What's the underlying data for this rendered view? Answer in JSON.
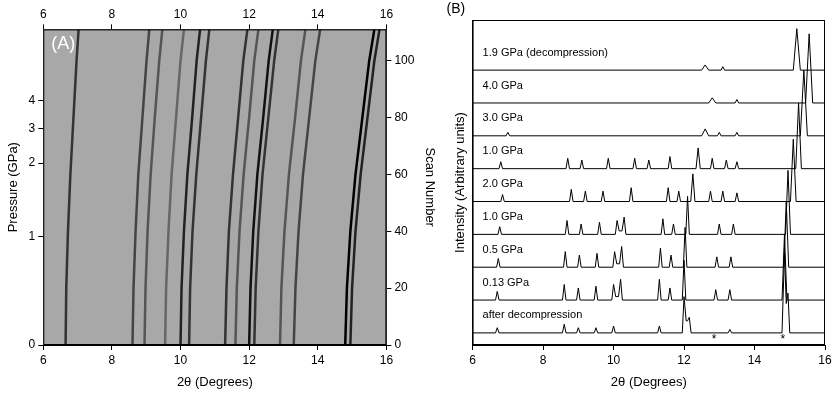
{
  "chart_data": [
    {
      "type": "line",
      "panel_label": "(A)",
      "xlabel": "2θ (Degrees)",
      "ylabel": "Scan Number",
      "y2label": "Pressure (GPa)",
      "xlim": [
        6,
        16
      ],
      "xticks": [
        6,
        8,
        10,
        12,
        14,
        16
      ],
      "ylim": [
        0,
        111
      ],
      "yticks": [
        0,
        20,
        40,
        60,
        80,
        100
      ],
      "y2ticks": [
        0,
        1,
        2,
        3,
        4
      ],
      "y2tick_scans": [
        0,
        38,
        64,
        76,
        86
      ],
      "grid": false,
      "series": [
        {
          "color": "#333333",
          "x": [
            6.65,
            6.67,
            6.72,
            6.79,
            6.88,
            6.97,
            7.03
          ],
          "values": [
            0,
            20,
            40,
            60,
            80,
            100,
            111
          ]
        },
        {
          "color": "#444444",
          "x": [
            8.6,
            8.63,
            8.69,
            8.77,
            8.89,
            9.01,
            9.09
          ],
          "values": [
            0,
            20,
            40,
            60,
            80,
            100,
            111
          ]
        },
        {
          "color": "#555555",
          "x": [
            8.95,
            8.98,
            9.04,
            9.13,
            9.25,
            9.38,
            9.47
          ],
          "values": [
            0,
            20,
            40,
            60,
            80,
            100,
            111
          ]
        },
        {
          "color": "#666666",
          "x": [
            9.55,
            9.58,
            9.65,
            9.74,
            9.87,
            10.0,
            10.1
          ],
          "values": [
            0,
            20,
            40,
            60,
            80,
            100,
            111
          ]
        },
        {
          "color": "#222222",
          "x": [
            10.0,
            10.03,
            10.1,
            10.2,
            10.34,
            10.47,
            10.57
          ],
          "values": [
            0,
            20,
            40,
            60,
            80,
            100,
            111
          ]
        },
        {
          "color": "#333333",
          "x": [
            10.25,
            10.28,
            10.35,
            10.46,
            10.6,
            10.74,
            10.84
          ],
          "values": [
            0,
            20,
            40,
            60,
            80,
            100,
            111
          ]
        },
        {
          "color": "#333333",
          "x": [
            11.3,
            11.34,
            11.41,
            11.53,
            11.68,
            11.83,
            11.95
          ],
          "values": [
            0,
            20,
            40,
            60,
            80,
            100,
            111
          ]
        },
        {
          "color": "#555555",
          "x": [
            11.6,
            11.64,
            11.72,
            11.84,
            12.0,
            12.15,
            12.27
          ],
          "values": [
            0,
            20,
            40,
            60,
            80,
            100,
            111
          ]
        },
        {
          "color": "#111111",
          "x": [
            12.0,
            12.04,
            12.12,
            12.24,
            12.41,
            12.57,
            12.69
          ],
          "values": [
            0,
            20,
            40,
            60,
            80,
            100,
            111
          ]
        },
        {
          "color": "#333333",
          "x": [
            12.15,
            12.19,
            12.27,
            12.39,
            12.56,
            12.73,
            12.85
          ],
          "values": [
            0,
            20,
            40,
            60,
            80,
            100,
            111
          ]
        },
        {
          "color": "#555555",
          "x": [
            12.9,
            12.94,
            13.03,
            13.16,
            13.34,
            13.51,
            13.64
          ],
          "values": [
            0,
            20,
            40,
            60,
            80,
            100,
            111
          ]
        },
        {
          "color": "#444444",
          "x": [
            13.3,
            13.35,
            13.44,
            13.57,
            13.75,
            13.93,
            14.07
          ],
          "values": [
            0,
            20,
            40,
            60,
            80,
            100,
            111
          ]
        },
        {
          "color": "#000000",
          "x": [
            14.8,
            14.85,
            14.95,
            15.1,
            15.3,
            15.5,
            15.65
          ],
          "values": [
            0,
            20,
            40,
            60,
            80,
            100,
            111
          ]
        },
        {
          "color": "#222222",
          "x": [
            14.95,
            15.0,
            15.1,
            15.25,
            15.45,
            15.65,
            15.8
          ],
          "values": [
            0,
            20,
            40,
            60,
            80,
            100,
            111
          ]
        }
      ]
    },
    {
      "type": "line",
      "panel_label": "(B)",
      "xlabel": "2θ (Degrees)",
      "ylabel": "Intensity (Arbitrary units)",
      "xlim": [
        6,
        16
      ],
      "xticks": [
        6,
        8,
        10,
        12,
        14,
        16
      ],
      "ylim": [
        -0.2,
        9.2
      ],
      "tick_labels": "x",
      "grid": false,
      "annotations": [
        {
          "text": "*",
          "x": 12.85,
          "y": -0.05
        },
        {
          "text": "*",
          "x": 14.8,
          "y": -0.05
        }
      ],
      "series": [
        {
          "name": "after decompression",
          "color": "#000000",
          "x": [
            6,
            6.65,
            6.7,
            6.75,
            8.55,
            8.6,
            8.65,
            8.95,
            9.0,
            9.05,
            9.45,
            9.5,
            9.55,
            9.95,
            10.0,
            10.05,
            11.25,
            11.3,
            11.35,
            11.95,
            12.0,
            12.06,
            12.1,
            12.15,
            12.2,
            13.25,
            13.3,
            13.35,
            14.78,
            14.85,
            14.9,
            14.95,
            15.0,
            16
          ],
          "values": [
            0.15,
            0.15,
            0.3,
            0.15,
            0.15,
            0.4,
            0.15,
            0.15,
            0.3,
            0.15,
            0.15,
            0.3,
            0.15,
            0.15,
            0.35,
            0.15,
            0.15,
            0.35,
            0.15,
            0.15,
            1.2,
            0.5,
            0.5,
            0.6,
            0.15,
            0.15,
            0.25,
            0.15,
            0.15,
            2.45,
            1.0,
            1.3,
            0.15,
            0.15
          ]
        },
        {
          "name": "0.13 GPa",
          "color": "#000000",
          "x": [
            6,
            6.65,
            6.7,
            6.75,
            8.55,
            8.6,
            8.65,
            8.95,
            9.0,
            9.05,
            9.45,
            9.5,
            9.55,
            9.95,
            10.0,
            10.06,
            10.14,
            10.2,
            10.25,
            11.25,
            11.3,
            11.35,
            11.55,
            11.6,
            11.65,
            11.95,
            12.0,
            12.05,
            12.85,
            12.9,
            12.95,
            13.25,
            13.3,
            13.35,
            14.78,
            14.85,
            14.92,
            16
          ],
          "values": [
            1.1,
            1.1,
            1.35,
            1.1,
            1.1,
            1.55,
            1.1,
            1.1,
            1.45,
            1.1,
            1.1,
            1.5,
            1.1,
            1.1,
            1.55,
            1.2,
            1.2,
            1.7,
            1.1,
            1.1,
            1.7,
            1.1,
            1.1,
            1.45,
            1.1,
            1.1,
            2.25,
            1.1,
            1.1,
            1.4,
            1.1,
            1.1,
            1.4,
            1.1,
            1.1,
            3.0,
            1.1,
            1.1
          ]
        },
        {
          "name": "0.5 GPa",
          "color": "#000000",
          "x": [
            6,
            6.68,
            6.73,
            6.78,
            8.58,
            8.63,
            8.68,
            8.98,
            9.03,
            9.08,
            9.48,
            9.53,
            9.58,
            9.98,
            10.03,
            10.09,
            10.17,
            10.23,
            10.28,
            11.28,
            11.33,
            11.38,
            11.58,
            11.63,
            11.68,
            11.98,
            12.03,
            12.08,
            12.88,
            12.93,
            12.98,
            13.28,
            13.33,
            13.38,
            14.83,
            14.9,
            14.97,
            16
          ],
          "values": [
            2.05,
            2.05,
            2.3,
            2.05,
            2.05,
            2.5,
            2.05,
            2.05,
            2.4,
            2.05,
            2.05,
            2.45,
            2.05,
            2.05,
            2.5,
            2.15,
            2.15,
            2.65,
            2.05,
            2.05,
            2.6,
            2.05,
            2.05,
            2.4,
            2.05,
            2.05,
            3.2,
            2.05,
            2.05,
            2.35,
            2.05,
            2.05,
            2.35,
            2.05,
            2.05,
            3.95,
            2.05,
            2.05
          ]
        },
        {
          "name": "1.0 GPa",
          "color": "#000000",
          "x": [
            6,
            6.72,
            6.77,
            6.82,
            8.63,
            8.68,
            8.73,
            9.03,
            9.08,
            9.13,
            9.55,
            9.6,
            9.65,
            10.05,
            10.1,
            10.16,
            10.24,
            10.3,
            10.35,
            11.35,
            11.4,
            11.45,
            11.65,
            11.7,
            11.75,
            12.05,
            12.1,
            12.15,
            12.95,
            13.0,
            13.05,
            13.35,
            13.4,
            13.45,
            14.88,
            14.95,
            15.02,
            16
          ],
          "values": [
            3.0,
            3.0,
            3.22,
            3.0,
            3.0,
            3.4,
            3.0,
            3.0,
            3.3,
            3.0,
            3.0,
            3.35,
            3.0,
            3.0,
            3.4,
            3.1,
            3.1,
            3.5,
            3.0,
            3.0,
            3.45,
            3.0,
            3.0,
            3.3,
            3.0,
            3.0,
            4.1,
            3.0,
            3.0,
            3.3,
            3.0,
            3.0,
            3.3,
            3.0,
            3.0,
            4.85,
            3.0,
            3.0
          ]
        },
        {
          "name": "2.0 GPa",
          "color": "#000000",
          "x": [
            6,
            6.8,
            6.85,
            6.9,
            8.75,
            8.8,
            8.85,
            9.15,
            9.2,
            9.25,
            9.65,
            9.7,
            9.75,
            10.45,
            10.5,
            10.55,
            11.5,
            11.55,
            11.6,
            11.8,
            11.85,
            11.9,
            12.19,
            12.25,
            12.31,
            12.7,
            12.75,
            12.8,
            13.05,
            13.1,
            13.15,
            13.45,
            13.5,
            13.55,
            15.02,
            15.1,
            15.18,
            16
          ],
          "values": [
            3.95,
            3.95,
            4.15,
            3.95,
            3.95,
            4.3,
            3.95,
            3.95,
            4.25,
            3.95,
            3.95,
            4.25,
            3.95,
            3.95,
            4.35,
            3.95,
            3.95,
            4.35,
            3.95,
            3.95,
            4.25,
            3.95,
            3.95,
            4.75,
            3.95,
            3.95,
            4.25,
            3.95,
            3.95,
            4.25,
            3.95,
            3.95,
            4.2,
            3.95,
            3.95,
            5.75,
            3.95,
            3.95
          ]
        },
        {
          "name": "1.0 GPa",
          "color": "#000000",
          "x": [
            6,
            6.75,
            6.8,
            6.85,
            8.65,
            8.7,
            8.75,
            9.05,
            9.1,
            9.15,
            9.8,
            9.85,
            9.9,
            10.55,
            10.6,
            10.65,
            10.95,
            11.0,
            11.05,
            11.55,
            11.6,
            11.65,
            12.34,
            12.4,
            12.46,
            12.75,
            12.8,
            12.85,
            13.15,
            13.2,
            13.25,
            13.45,
            13.5,
            13.55,
            15.17,
            15.25,
            15.33,
            16
          ],
          "values": [
            4.9,
            4.9,
            5.1,
            4.9,
            4.9,
            5.2,
            4.9,
            4.9,
            5.15,
            4.9,
            4.9,
            5.2,
            4.9,
            4.9,
            5.2,
            4.9,
            4.9,
            5.15,
            4.9,
            4.9,
            5.25,
            4.9,
            4.9,
            5.5,
            4.9,
            4.9,
            5.2,
            4.9,
            4.9,
            5.15,
            4.9,
            4.9,
            5.1,
            4.9,
            4.9,
            6.8,
            4.9,
            4.9
          ]
        },
        {
          "name": "3.0 GPa",
          "color": "#000000",
          "x": [
            6,
            6.95,
            7.0,
            7.05,
            12.5,
            12.6,
            12.7,
            12.95,
            13.0,
            13.05,
            13.45,
            13.5,
            13.55,
            15.3,
            15.4,
            15.5,
            16
          ],
          "values": [
            5.85,
            5.85,
            5.95,
            5.85,
            5.85,
            6.05,
            5.85,
            5.85,
            5.95,
            5.85,
            5.85,
            5.95,
            5.85,
            5.85,
            7.75,
            5.85,
            5.85
          ]
        },
        {
          "name": "4.0 GPa",
          "color": "#000000",
          "x": [
            6,
            12.7,
            12.8,
            12.9,
            13.45,
            13.5,
            13.55,
            15.45,
            15.55,
            15.65,
            16
          ],
          "values": [
            6.8,
            6.8,
            6.95,
            6.8,
            6.8,
            6.9,
            6.8,
            6.8,
            8.8,
            6.8,
            6.8
          ]
        },
        {
          "name": "1.9 GPa (decompression)",
          "color": "#000000",
          "x": [
            6,
            12.5,
            12.6,
            12.7,
            13.05,
            13.1,
            13.15,
            15.1,
            15.2,
            15.3,
            16
          ],
          "values": [
            7.75,
            7.75,
            7.9,
            7.75,
            7.75,
            7.85,
            7.75,
            7.75,
            8.95,
            7.75,
            7.75
          ]
        }
      ]
    }
  ]
}
